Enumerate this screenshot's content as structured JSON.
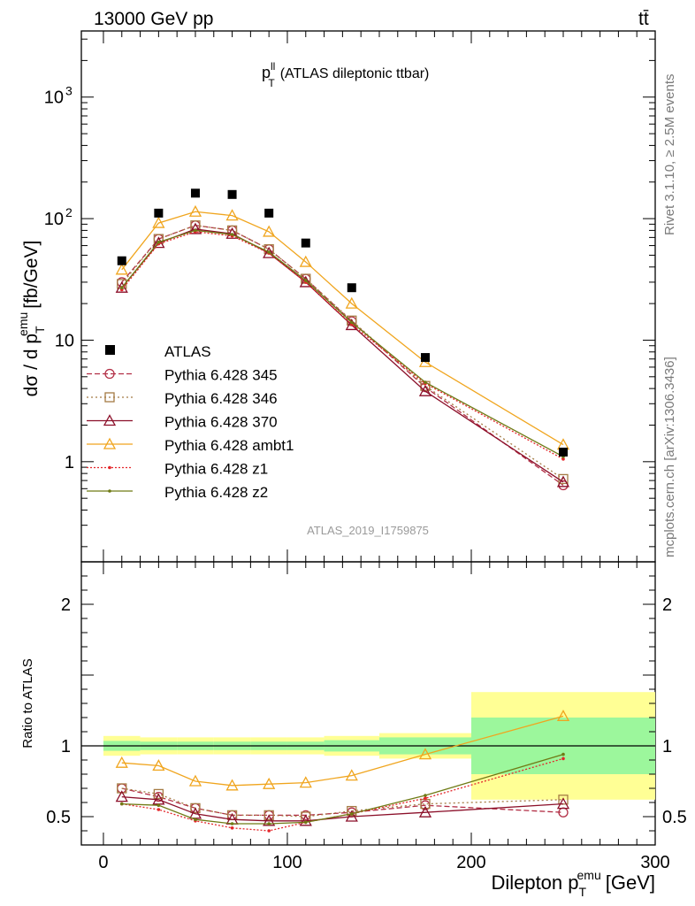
{
  "header": {
    "left": "13000 GeV pp",
    "right": "tt̄"
  },
  "side_labels": {
    "top": "Rivet 3.1.10, ≥ 2.5M events",
    "bottom": "mcplots.cern.ch [arXiv:1306.3436]"
  },
  "chart_data": {
    "type": "line",
    "title": "p",
    "title_sup": "ll",
    "title_sub": "T",
    "title_rest": "(ATLAS dileptonic ttbar)",
    "watermark": "ATLAS_2019_I1759875",
    "ylabel_main": "dσ / d p",
    "ylabel_sub": "T",
    "ylabel_sup": "emu",
    "ylabel_unit": "[fb/GeV]",
    "ylabel_ratio": "Ratio to ATLAS",
    "xlabel": "Dilepton p",
    "xlabel_sub": "T",
    "xlabel_sup": "emu",
    "xlabel_unit": "[GeV]",
    "xlim": [
      -12,
      300
    ],
    "ylim_main": [
      0.15,
      3500
    ],
    "ylog_main": true,
    "ylim_ratio": [
      0.3,
      2.3
    ],
    "x_ticks": [
      "0",
      "100",
      "200",
      "300"
    ],
    "y_ticks_main": [
      "1",
      "10",
      "10^2",
      "10^3"
    ],
    "y_ticks_ratio": [
      "0.5",
      "1",
      "2"
    ],
    "x": [
      10,
      30,
      50,
      70,
      90,
      110,
      135,
      175,
      250
    ],
    "bins": [
      [
        0,
        20
      ],
      [
        20,
        40
      ],
      [
        40,
        60
      ],
      [
        60,
        80
      ],
      [
        80,
        100
      ],
      [
        100,
        120
      ],
      [
        120,
        150
      ],
      [
        150,
        200
      ],
      [
        200,
        300
      ]
    ],
    "data": {
      "name": "ATLAS",
      "values": [
        45,
        111,
        162,
        158,
        111,
        63,
        27,
        7.2,
        1.2
      ]
    },
    "band_inner": [
      0.035,
      0.03,
      0.03,
      0.03,
      0.03,
      0.03,
      0.04,
      0.06,
      0.2
    ],
    "band_outer": [
      0.07,
      0.06,
      0.06,
      0.06,
      0.06,
      0.06,
      0.07,
      0.09,
      0.38
    ],
    "series": [
      {
        "name": "Pythia 6.428 345",
        "color": "#b22e45",
        "dash": "6,3",
        "marker": "circle",
        "values": [
          30,
          68,
          88,
          80,
          56,
          32,
          14.3,
          4.1,
          0.64
        ],
        "ratio": [
          0.7,
          0.64,
          0.56,
          0.51,
          0.51,
          0.51,
          0.53,
          0.58,
          0.53
        ]
      },
      {
        "name": "Pythia 6.428 346",
        "color": "#a57b44",
        "dash": "2,3",
        "marker": "square",
        "values": [
          29,
          68,
          88,
          80,
          56,
          32,
          14.5,
          4.2,
          0.72
        ],
        "ratio": [
          0.7,
          0.66,
          0.56,
          0.51,
          0.51,
          0.5,
          0.54,
          0.59,
          0.62
        ]
      },
      {
        "name": "Pythia 6.428 370",
        "color": "#8b0f29",
        "dash": "",
        "marker": "triangle",
        "values": [
          27,
          63,
          82,
          75,
          52,
          30,
          13.3,
          3.8,
          0.68
        ],
        "ratio": [
          0.64,
          0.62,
          0.52,
          0.48,
          0.47,
          0.47,
          0.5,
          0.53,
          0.59
        ]
      },
      {
        "name": "Pythia 6.428 ambt1",
        "color": "#f0a51e",
        "dash": "",
        "marker": "triangle",
        "values": [
          38,
          92,
          114,
          106,
          78,
          44,
          20,
          6.6,
          1.38
        ],
        "ratio": [
          0.88,
          0.86,
          0.75,
          0.72,
          0.73,
          0.74,
          0.79,
          0.94,
          1.21
        ]
      },
      {
        "name": "Pythia 6.428 z1",
        "color": "#e4262a",
        "dash": "2,2",
        "marker": "dot",
        "values": [
          26,
          62,
          78,
          72,
          52,
          30,
          13.5,
          4.4,
          1.05
        ],
        "ratio": [
          0.59,
          0.55,
          0.47,
          0.42,
          0.4,
          0.46,
          0.52,
          0.63,
          0.91
        ]
      },
      {
        "name": "Pythia 6.428 z2",
        "color": "#6f7b15",
        "dash": "",
        "marker": "dot",
        "values": [
          27,
          64,
          80,
          74,
          53,
          31,
          14,
          4.5,
          1.1
        ],
        "ratio": [
          0.59,
          0.58,
          0.48,
          0.45,
          0.45,
          0.46,
          0.52,
          0.65,
          0.94
        ]
      }
    ]
  }
}
